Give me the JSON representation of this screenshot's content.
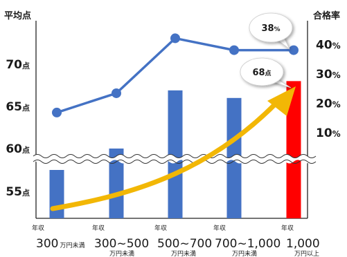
{
  "chart_data": {
    "type": "bar",
    "left_axis_title": "平均点",
    "right_axis_title": "合格率",
    "left_ticks": [
      {
        "num": "55",
        "unit": "点",
        "value": 55
      },
      {
        "num": "60",
        "unit": "点",
        "value": 60
      },
      {
        "num": "65",
        "unit": "点",
        "value": 65
      },
      {
        "num": "70",
        "unit": "点",
        "value": 70
      }
    ],
    "right_ticks": [
      {
        "num": "10",
        "unit": "%",
        "value": 10
      },
      {
        "num": "20",
        "unit": "%",
        "value": 20
      },
      {
        "num": "30",
        "unit": "%",
        "value": 30
      },
      {
        "num": "40",
        "unit": "%",
        "value": 40
      }
    ],
    "axis_break": true,
    "categories": [
      {
        "prefix": "年収",
        "value": "300",
        "suffix": "万円未満",
        "suffix_inline": true
      },
      {
        "prefix": "年収",
        "value": "300~500",
        "suffix": "万円未満",
        "suffix_inline": false
      },
      {
        "prefix": "年収",
        "value": "500~700",
        "suffix": "万円未満",
        "suffix_inline": false
      },
      {
        "prefix": "年収",
        "value": "700~1,000",
        "suffix": "万円未満",
        "suffix_inline": false
      },
      {
        "prefix": "年収",
        "value": "1,000",
        "suffix": "万円以上",
        "suffix_inline": false
      }
    ],
    "bars": {
      "values": [
        54.3,
        60.0,
        66.9,
        66.0,
        68.0
      ],
      "colors": [
        "#4472C4",
        "#4472C4",
        "#4472C4",
        "#4472C4",
        "#FF0000"
      ]
    },
    "line": {
      "values": [
        17,
        23.5,
        42,
        38,
        38
      ],
      "color": "#4472C4"
    },
    "trend_arrow": {
      "color": "#F2B705"
    },
    "callouts": [
      {
        "num": "38",
        "unit": "%"
      },
      {
        "num": "68",
        "unit": "点"
      }
    ]
  }
}
